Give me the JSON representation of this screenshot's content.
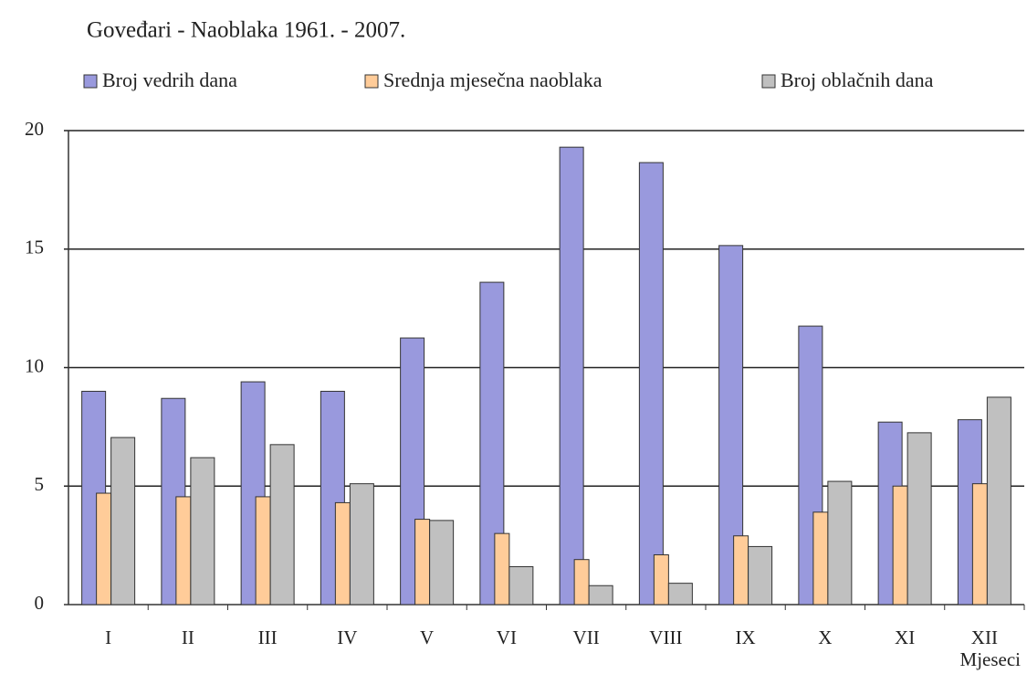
{
  "chart_data": {
    "type": "bar",
    "title": "Goveđari - Naoblaka 1961. - 2007.",
    "x_label": "Mjeseci",
    "categories": [
      "I",
      "II",
      "III",
      "IV",
      "V",
      "VI",
      "VII",
      "VIII",
      "IX",
      "X",
      "XI",
      "XII"
    ],
    "series": [
      {
        "name": "Broj vedrih dana",
        "color": "#9999dd",
        "values": [
          9.0,
          8.7,
          9.4,
          9.0,
          11.25,
          13.6,
          19.3,
          18.65,
          15.15,
          11.75,
          7.7,
          7.8
        ]
      },
      {
        "name": "Srednja mjesečna naoblaka",
        "color": "#ffcc99",
        "values": [
          4.7,
          4.55,
          4.55,
          4.3,
          3.6,
          3.0,
          1.9,
          2.1,
          2.9,
          3.9,
          5.0,
          5.1
        ]
      },
      {
        "name": "Broj oblačnih dana",
        "color": "#c0c0c0",
        "values": [
          7.05,
          6.2,
          6.75,
          5.1,
          3.55,
          1.6,
          0.8,
          0.9,
          2.45,
          5.2,
          7.25,
          8.75
        ]
      }
    ],
    "ylim": [
      0,
      20
    ],
    "yticks": [
      0,
      5,
      10,
      15,
      20
    ],
    "grid": true,
    "legend": "top"
  }
}
